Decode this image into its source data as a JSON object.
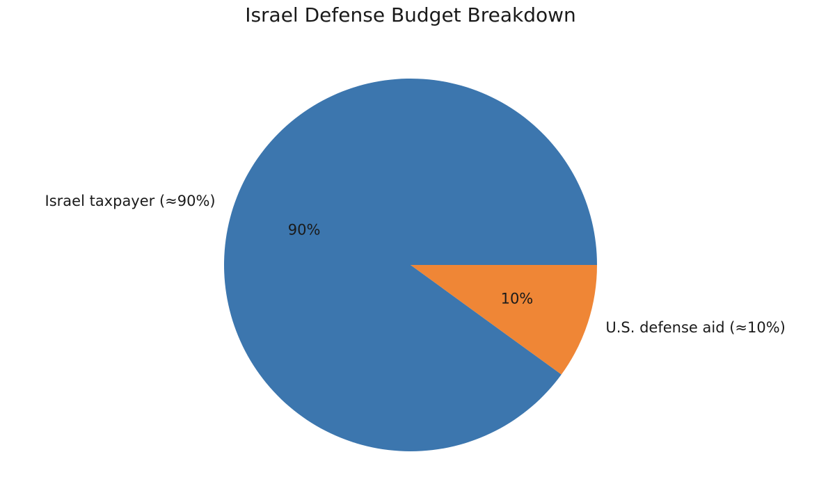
{
  "chart_data": {
    "type": "pie",
    "title": "Israel Defense Budget Breakdown",
    "start_angle_deg": 0,
    "direction": "counterclockwise",
    "slices": [
      {
        "label": "Israel taxpayer (≈90%)",
        "value": 90,
        "pct_label": "90%",
        "color": "#3c76ae"
      },
      {
        "label": "U.S. defense aid (≈10%)",
        "value": 10,
        "pct_label": "10%",
        "color": "#ef8636"
      }
    ]
  }
}
